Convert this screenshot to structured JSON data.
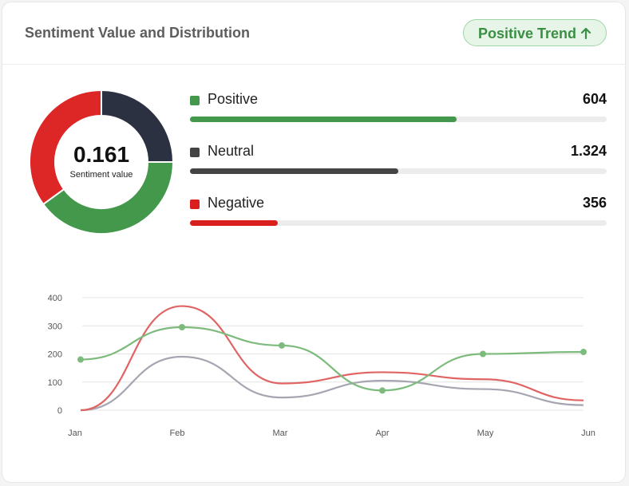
{
  "header": {
    "title": "Sentiment Value and Distribution",
    "badge_label": "Positive Trend",
    "badge_icon": "arrow-up-icon"
  },
  "summary": {
    "value": "0.161",
    "label": "Sentiment value"
  },
  "metrics": [
    {
      "label": "Positive",
      "value": "604",
      "fraction": 0.64,
      "color": "#43984b"
    },
    {
      "label": "Neutral",
      "value": "1.324",
      "fraction": 0.5,
      "color": "#444444"
    },
    {
      "label": "Negative",
      "value": "356",
      "fraction": 0.21,
      "color": "#d91e1e"
    }
  ],
  "chart_data": [
    {
      "type": "pie",
      "categories": [
        "Neutral",
        "Positive",
        "Negative"
      ],
      "values": [
        25,
        40,
        35
      ],
      "colors": [
        "#2c3142",
        "#43984b",
        "#dd2626"
      ]
    },
    {
      "type": "line",
      "categories": [
        "Jan",
        "Feb",
        "Mar",
        "Apr",
        "May",
        "Jun"
      ],
      "yticks": [
        0,
        100,
        200,
        300,
        400
      ],
      "ylim": [
        0,
        400
      ],
      "grid": true,
      "series": [
        {
          "values": [
            180,
            295,
            230,
            70,
            200,
            207
          ],
          "color": "#7dbb7d",
          "markers": true
        },
        {
          "values": [
            0,
            370,
            95,
            135,
            110,
            35
          ],
          "color": "#e06464",
          "markers": false
        },
        {
          "values": [
            0,
            190,
            45,
            105,
            75,
            18
          ],
          "color": "#a6a6b2",
          "markers": false
        }
      ]
    }
  ]
}
